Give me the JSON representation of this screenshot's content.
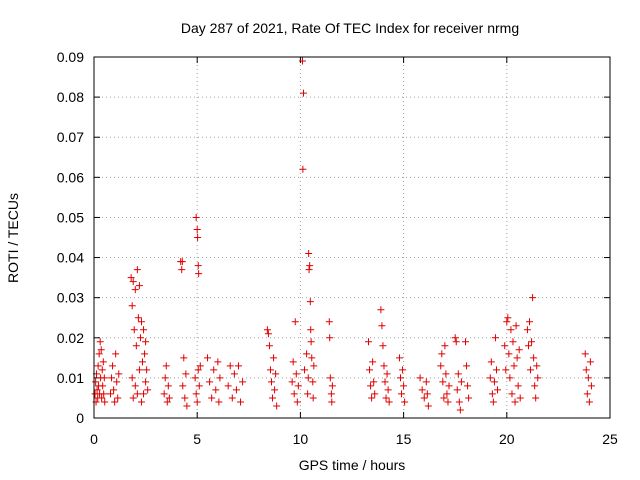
{
  "chart_data": {
    "type": "scatter",
    "title": "Day 287 of 2021, Rate Of TEC Index for receiver nrmg",
    "xlabel": "GPS time / hours",
    "ylabel": "ROTI / TECUs",
    "xlim": [
      0,
      25
    ],
    "ylim": [
      0,
      0.09
    ],
    "grid": true,
    "marker": "+",
    "color": "#e00000",
    "xticks": [
      "0",
      "5",
      "10",
      "15",
      "20",
      "25"
    ],
    "yticks": [
      "0",
      "0.01",
      "0.02",
      "0.03",
      "0.04",
      "0.05",
      "0.06",
      "0.07",
      "0.08",
      "0.09"
    ],
    "points": [
      [
        0.05,
        0.006
      ],
      [
        0.08,
        0.009
      ],
      [
        0.1,
        0.004
      ],
      [
        0.12,
        0.011
      ],
      [
        0.15,
        0.007
      ],
      [
        0.18,
        0.005
      ],
      [
        0.2,
        0.013
      ],
      [
        0.22,
        0.008
      ],
      [
        0.25,
        0.016
      ],
      [
        0.27,
        0.006
      ],
      [
        0.3,
        0.019
      ],
      [
        0.32,
        0.01
      ],
      [
        0.35,
        0.017
      ],
      [
        0.37,
        0.005
      ],
      [
        0.4,
        0.012
      ],
      [
        0.42,
        0.008
      ],
      [
        0.45,
        0.014
      ],
      [
        0.47,
        0.006
      ],
      [
        0.5,
        0.01
      ],
      [
        0.52,
        0.004
      ],
      [
        0.8,
        0.006
      ],
      [
        0.85,
        0.01
      ],
      [
        0.9,
        0.013
      ],
      [
        0.95,
        0.007
      ],
      [
        1.0,
        0.004
      ],
      [
        1.05,
        0.016
      ],
      [
        1.1,
        0.009
      ],
      [
        1.15,
        0.005
      ],
      [
        1.2,
        0.011
      ],
      [
        1.8,
        0.035
      ],
      [
        1.85,
        0.028
      ],
      [
        1.9,
        0.034
      ],
      [
        1.95,
        0.022
      ],
      [
        2.0,
        0.032
      ],
      [
        2.05,
        0.018
      ],
      [
        2.1,
        0.037
      ],
      [
        2.15,
        0.025
      ],
      [
        2.2,
        0.033
      ],
      [
        2.25,
        0.02
      ],
      [
        2.3,
        0.024
      ],
      [
        2.35,
        0.014
      ],
      [
        2.4,
        0.022
      ],
      [
        2.45,
        0.016
      ],
      [
        2.5,
        0.019
      ],
      [
        2.55,
        0.012
      ],
      [
        1.85,
        0.01
      ],
      [
        2.0,
        0.008
      ],
      [
        2.2,
        0.012
      ],
      [
        2.4,
        0.006
      ],
      [
        2.5,
        0.009
      ],
      [
        1.9,
        0.005
      ],
      [
        2.1,
        0.006
      ],
      [
        2.3,
        0.004
      ],
      [
        2.6,
        0.007
      ],
      [
        3.4,
        0.006
      ],
      [
        3.45,
        0.01
      ],
      [
        3.5,
        0.013
      ],
      [
        3.55,
        0.004
      ],
      [
        3.6,
        0.008
      ],
      [
        3.65,
        0.005
      ],
      [
        4.2,
        0.039
      ],
      [
        4.25,
        0.037
      ],
      [
        4.3,
        0.008
      ],
      [
        4.35,
        0.015
      ],
      [
        4.4,
        0.005
      ],
      [
        4.45,
        0.011
      ],
      [
        4.5,
        0.003
      ],
      [
        4.28,
        0.039
      ],
      [
        4.95,
        0.05
      ],
      [
        5.0,
        0.047
      ],
      [
        5.02,
        0.045
      ],
      [
        5.05,
        0.038
      ],
      [
        5.07,
        0.036
      ],
      [
        4.9,
        0.01
      ],
      [
        4.95,
        0.006
      ],
      [
        5.0,
        0.004
      ],
      [
        5.05,
        0.012
      ],
      [
        5.1,
        0.008
      ],
      [
        5.15,
        0.013
      ],
      [
        5.5,
        0.015
      ],
      [
        5.6,
        0.009
      ],
      [
        5.7,
        0.005
      ],
      [
        5.8,
        0.012
      ],
      [
        5.9,
        0.007
      ],
      [
        6.0,
        0.014
      ],
      [
        6.05,
        0.004
      ],
      [
        6.1,
        0.01
      ],
      [
        6.5,
        0.008
      ],
      [
        6.6,
        0.013
      ],
      [
        6.7,
        0.005
      ],
      [
        6.8,
        0.011
      ],
      [
        6.9,
        0.007
      ],
      [
        7.0,
        0.013
      ],
      [
        7.1,
        0.004
      ],
      [
        7.2,
        0.009
      ],
      [
        8.4,
        0.022
      ],
      [
        8.45,
        0.021
      ],
      [
        8.5,
        0.018
      ],
      [
        8.55,
        0.012
      ],
      [
        8.6,
        0.009
      ],
      [
        8.65,
        0.005
      ],
      [
        8.7,
        0.015
      ],
      [
        8.75,
        0.007
      ],
      [
        8.8,
        0.011
      ],
      [
        8.85,
        0.003
      ],
      [
        9.6,
        0.009
      ],
      [
        9.65,
        0.014
      ],
      [
        9.7,
        0.006
      ],
      [
        9.75,
        0.024
      ],
      [
        9.8,
        0.011
      ],
      [
        9.85,
        0.004
      ],
      [
        9.9,
        0.008
      ],
      [
        10.1,
        0.089
      ],
      [
        10.15,
        0.081
      ],
      [
        10.12,
        0.062
      ],
      [
        10.2,
        0.012
      ],
      [
        10.3,
        0.016
      ],
      [
        10.35,
        0.006
      ],
      [
        10.4,
        0.041
      ],
      [
        10.45,
        0.038
      ],
      [
        10.42,
        0.037
      ],
      [
        10.48,
        0.029
      ],
      [
        10.5,
        0.022
      ],
      [
        10.52,
        0.019
      ],
      [
        10.55,
        0.015
      ],
      [
        10.6,
        0.009
      ],
      [
        10.62,
        0.005
      ],
      [
        10.65,
        0.013
      ],
      [
        10.38,
        0.01
      ],
      [
        11.4,
        0.024
      ],
      [
        11.42,
        0.02
      ],
      [
        11.45,
        0.01
      ],
      [
        11.5,
        0.006
      ],
      [
        11.52,
        0.004
      ],
      [
        11.55,
        0.008
      ],
      [
        13.3,
        0.019
      ],
      [
        13.35,
        0.012
      ],
      [
        13.4,
        0.008
      ],
      [
        13.45,
        0.005
      ],
      [
        13.5,
        0.014
      ],
      [
        13.55,
        0.009
      ],
      [
        13.6,
        0.006
      ],
      [
        13.9,
        0.027
      ],
      [
        13.95,
        0.023
      ],
      [
        14.0,
        0.018
      ],
      [
        14.05,
        0.013
      ],
      [
        14.1,
        0.009
      ],
      [
        14.15,
        0.005
      ],
      [
        14.2,
        0.011
      ],
      [
        14.25,
        0.007
      ],
      [
        14.3,
        0.004
      ],
      [
        14.8,
        0.015
      ],
      [
        14.85,
        0.01
      ],
      [
        14.9,
        0.006
      ],
      [
        14.95,
        0.012
      ],
      [
        15.0,
        0.008
      ],
      [
        15.05,
        0.004
      ],
      [
        15.8,
        0.01
      ],
      [
        15.9,
        0.007
      ],
      [
        16.0,
        0.005
      ],
      [
        16.1,
        0.009
      ],
      [
        16.2,
        0.003
      ],
      [
        16.15,
        0.006
      ],
      [
        16.8,
        0.013
      ],
      [
        16.85,
        0.016
      ],
      [
        16.9,
        0.009
      ],
      [
        16.95,
        0.005
      ],
      [
        17.0,
        0.018
      ],
      [
        17.05,
        0.011
      ],
      [
        17.1,
        0.006
      ],
      [
        17.15,
        0.004
      ],
      [
        17.2,
        0.008
      ],
      [
        17.5,
        0.02
      ],
      [
        17.55,
        0.019
      ],
      [
        17.6,
        0.007
      ],
      [
        17.65,
        0.011
      ],
      [
        17.7,
        0.004
      ],
      [
        17.75,
        0.002
      ],
      [
        17.8,
        0.009
      ],
      [
        18.0,
        0.019
      ],
      [
        18.05,
        0.013
      ],
      [
        18.1,
        0.008
      ],
      [
        18.15,
        0.005
      ],
      [
        19.2,
        0.01
      ],
      [
        19.25,
        0.014
      ],
      [
        19.3,
        0.006
      ],
      [
        19.35,
        0.004
      ],
      [
        19.4,
        0.009
      ],
      [
        19.45,
        0.02
      ],
      [
        19.5,
        0.012
      ],
      [
        19.55,
        0.007
      ],
      [
        19.9,
        0.018
      ],
      [
        19.95,
        0.012
      ],
      [
        20.0,
        0.024
      ],
      [
        20.05,
        0.025
      ],
      [
        20.1,
        0.016
      ],
      [
        20.15,
        0.01
      ],
      [
        20.2,
        0.022
      ],
      [
        20.25,
        0.006
      ],
      [
        20.3,
        0.019
      ],
      [
        20.35,
        0.013
      ],
      [
        20.4,
        0.004
      ],
      [
        20.45,
        0.023
      ],
      [
        20.5,
        0.015
      ],
      [
        20.55,
        0.008
      ],
      [
        20.6,
        0.017
      ],
      [
        20.65,
        0.005
      ],
      [
        21.0,
        0.022
      ],
      [
        21.05,
        0.018
      ],
      [
        21.1,
        0.024
      ],
      [
        21.15,
        0.012
      ],
      [
        21.2,
        0.019
      ],
      [
        21.25,
        0.03
      ],
      [
        21.3,
        0.015
      ],
      [
        21.35,
        0.008
      ],
      [
        21.4,
        0.005
      ],
      [
        21.45,
        0.013
      ],
      [
        21.5,
        0.01
      ],
      [
        23.8,
        0.016
      ],
      [
        23.85,
        0.012
      ],
      [
        23.9,
        0.006
      ],
      [
        23.95,
        0.01
      ],
      [
        24.0,
        0.004
      ],
      [
        24.05,
        0.014
      ],
      [
        24.1,
        0.008
      ]
    ]
  }
}
